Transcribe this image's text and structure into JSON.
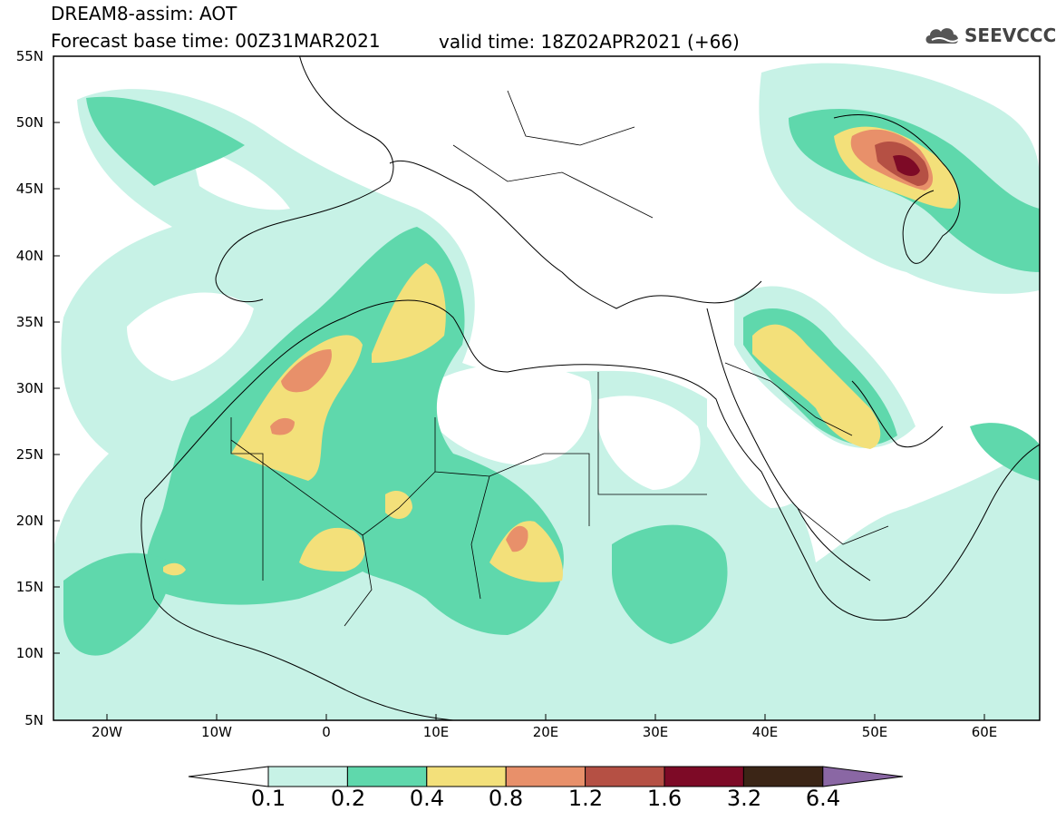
{
  "header": {
    "title_line1": "DREAM8-assim: AOT",
    "title_line2": "Forecast base time: 00Z31MAR2021",
    "valid_time": "valid time: 18Z02APR2021 (+66)",
    "logo_text": "SEEVCCC",
    "logo_icon": "cloud-icon"
  },
  "map": {
    "lat_labels": [
      "55N",
      "50N",
      "45N",
      "40N",
      "35N",
      "30N",
      "25N",
      "20N",
      "15N",
      "10N",
      "5N"
    ],
    "lon_labels": [
      "20W",
      "10W",
      "0",
      "10E",
      "20E",
      "30E",
      "40E",
      "50E",
      "60E"
    ]
  },
  "colorbar": {
    "labels": [
      "0.1",
      "0.2",
      "0.4",
      "0.8",
      "1.2",
      "1.6",
      "3.2",
      "6.4"
    ],
    "colors": [
      "#ffffff",
      "#c7f2e6",
      "#5fd8ac",
      "#f3e07a",
      "#e8906a",
      "#b55044",
      "#7d0a26",
      "#3b2516",
      "#8a67a4"
    ]
  }
}
